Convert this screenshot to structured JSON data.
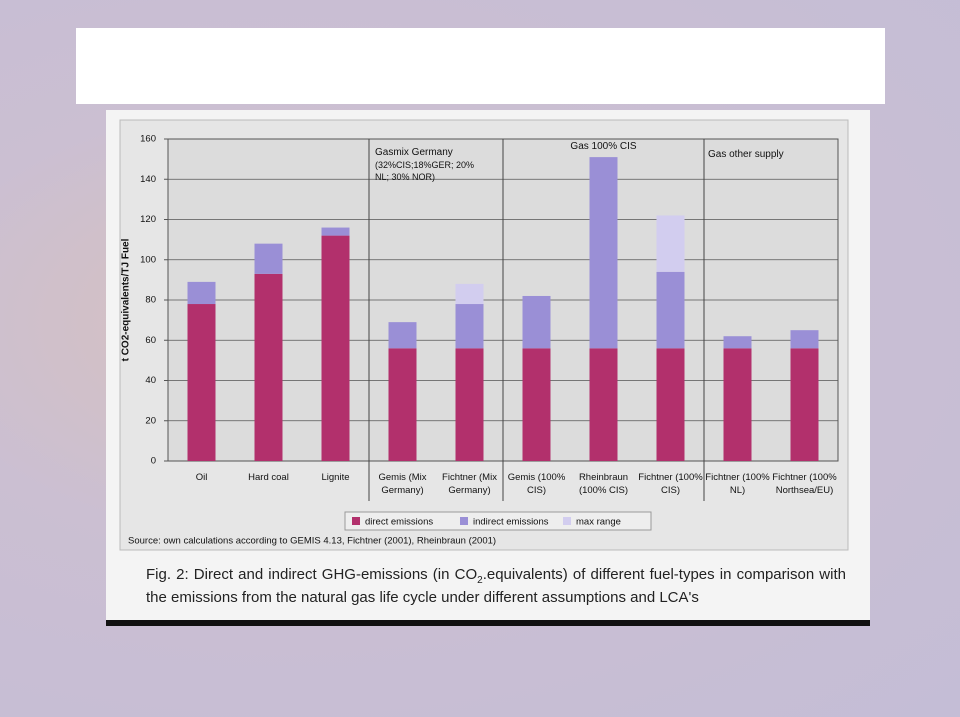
{
  "chart_data": {
    "type": "stacked_bar",
    "y_label": "t CO2-equivalents/TJ Fuel",
    "categories": [
      "Oil",
      "Hard coal",
      "Lignite",
      "Gemis (Mix Germany)",
      "Fichtner (Mix Germany)",
      "Gemis (100% CIS)",
      "Rheinbraun (100% CIS)",
      "Fichtner (100% CIS)",
      "Fichtner (100% NL)",
      "Fichtner (100% Northsea/EU)"
    ],
    "series": [
      {
        "name": "direct emissions",
        "color": "#b2306c",
        "values": [
          78,
          93,
          112,
          56,
          56,
          56,
          56,
          56,
          56,
          56
        ]
      },
      {
        "name": "indirect emissions",
        "color": "#9a8fd6",
        "values": [
          11,
          15,
          4,
          13,
          22,
          26,
          95,
          38,
          6,
          9
        ]
      },
      {
        "name": "max range",
        "color": "#d2cdef",
        "values": [
          null,
          null,
          null,
          null,
          10,
          null,
          null,
          28,
          null,
          null
        ]
      }
    ],
    "ylim": [
      0,
      160
    ],
    "yticks": [
      0,
      20,
      40,
      60,
      80,
      100,
      120,
      140,
      160
    ],
    "grid": true,
    "annotations": [
      "Gasmix Germany",
      "(32%CIS;18%GER; 20% NL; 30% NOR)",
      "Gas 100% CIS",
      "Gas other supply"
    ],
    "source": "Source: own calculations according to GEMIS 4.13, Fichtner (2001), Rheinbraun (2001)",
    "caption": [
      "Fig. 2: Direct and indirect GHG-emissions (in CO",
      "2",
      ".equivalents) of different fuel-types in comparison with the emissions from the natural gas life cycle under different assumptions and LCA's"
    ]
  }
}
